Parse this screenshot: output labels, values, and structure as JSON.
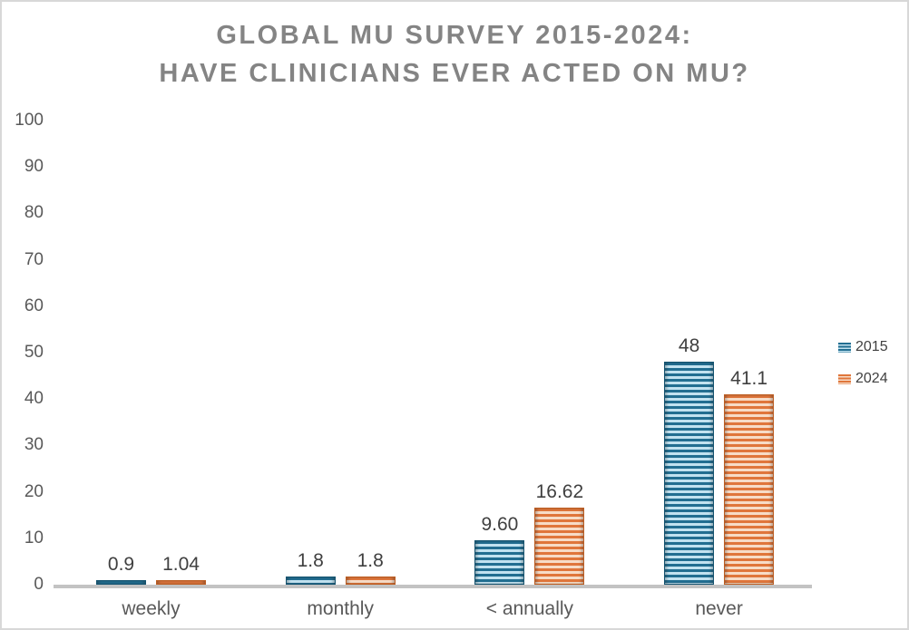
{
  "title": {
    "line1": "GLOBAL MU SURVEY 2015-2024:",
    "line2": "HAVE CLINICIANS EVER ACTED ON MU?"
  },
  "chart_data": {
    "type": "bar",
    "title": "GLOBAL MU SURVEY 2015-2024: HAVE CLINICIANS EVER ACTED ON MU?",
    "categories": [
      "weekly",
      "monthly",
      "< annually",
      "never"
    ],
    "series": [
      {
        "name": "2015",
        "values": [
          0.9,
          1.8,
          9.6,
          48
        ],
        "data_labels": [
          "0.9",
          "1.8",
          "9.60",
          "48"
        ],
        "stripe_dark": "#226e91",
        "stripe_light": "#c2e2f0",
        "border": "#14536f"
      },
      {
        "name": "2024",
        "values": [
          1.04,
          1.8,
          16.62,
          41.1
        ],
        "data_labels": [
          "1.04",
          "1.8",
          "16.62",
          "41.1"
        ],
        "stripe_dark": "#e0763b",
        "stripe_light": "#f7dcc7",
        "border": "#bc5d21"
      }
    ],
    "xlabel": "",
    "ylabel": "",
    "ylim": [
      0,
      100
    ],
    "yticks": [
      0,
      10,
      20,
      30,
      40,
      50,
      60,
      70,
      80,
      90,
      100
    ],
    "grid": false,
    "legend_position": "right",
    "bar_pattern": "horizontal-stripes"
  },
  "colors": {
    "background": "#ffffff",
    "frame_border": "#d8d8d8",
    "title_text": "#848484",
    "axis_line": "#c3c3c3",
    "tick_label": "#595959",
    "category_label": "#595959",
    "data_label": "#404040",
    "legend_label": "#404040"
  }
}
